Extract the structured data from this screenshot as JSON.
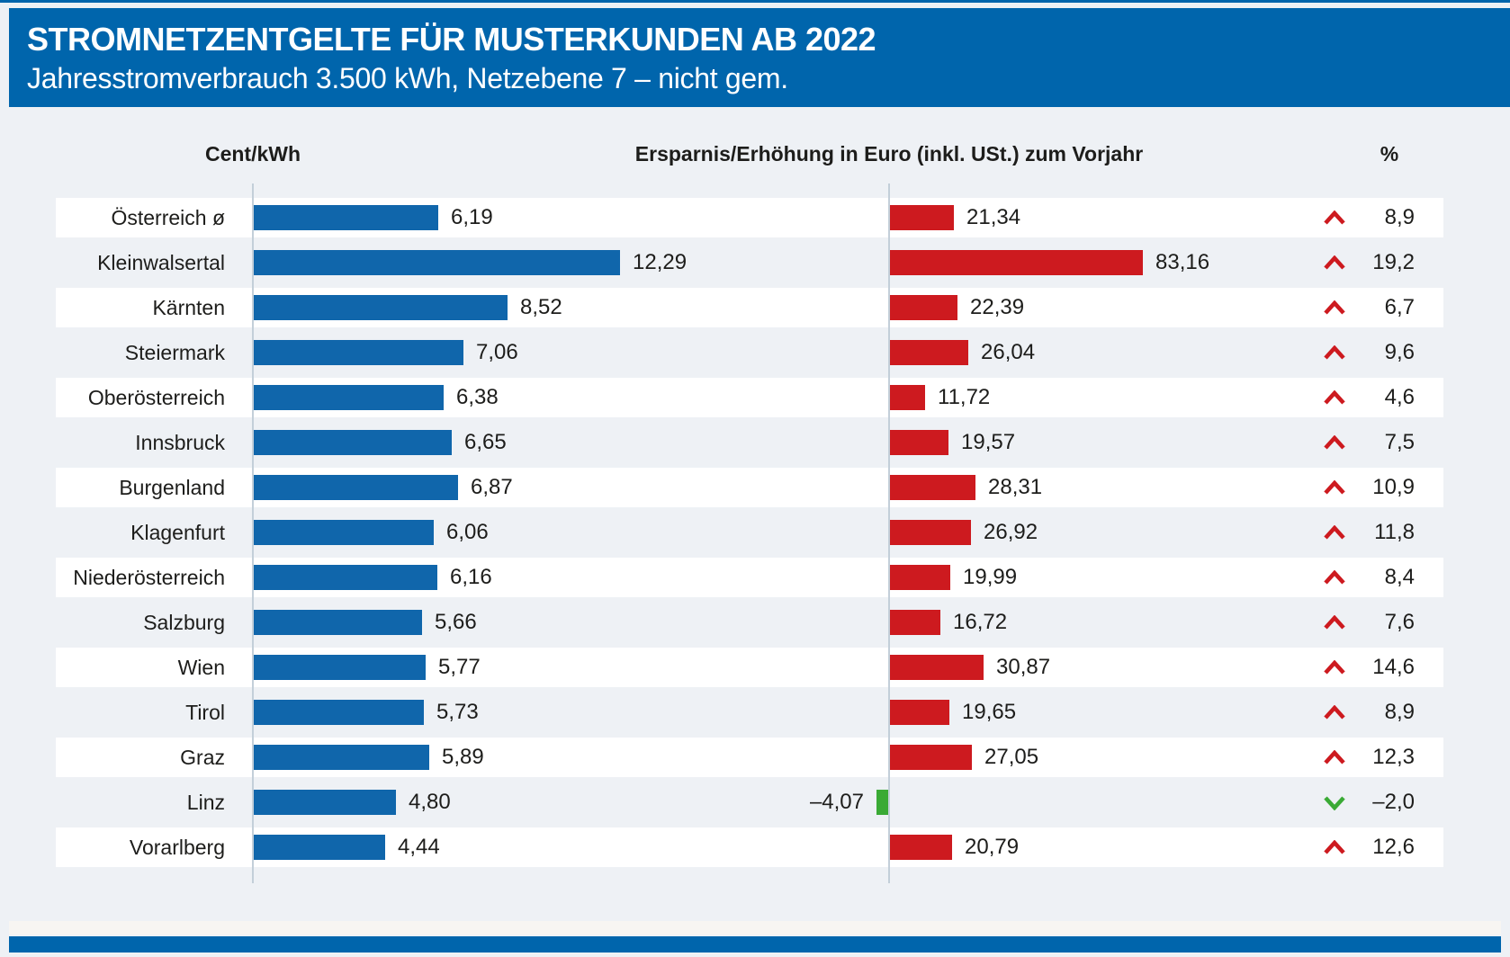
{
  "header": {
    "title": "STROMNETZENTGELTE FÜR MUSTERKUNDEN AB 2022",
    "subtitle": "Jahresstromverbrauch 3.500 kWh, Netzebene 7 – nicht gem."
  },
  "colors": {
    "header_blue": "#0065ac",
    "bar_blue": "#1066ab",
    "bar_red": "#cd1a1f",
    "bar_green": "#3aaa35",
    "page_bg": "#eef1f5",
    "row_white": "#ffffff",
    "row_alt": "#eef1f5",
    "axis_line": "#c3cfd9",
    "text": "#1d1d1b"
  },
  "chart_data": {
    "type": "bar",
    "orientation": "horizontal",
    "title": "STROMNETZENTGELTE FÜR MUSTERKUNDEN AB 2022",
    "subtitle": "Jahresstromverbrauch 3.500 kWh, Netzebene 7 – nicht gem.",
    "legend_position": "none",
    "grid": false,
    "categories": [
      "Österreich ø",
      "Kleinwalsertal",
      "Kärnten",
      "Steiermark",
      "Oberösterreich",
      "Innsbruck",
      "Burgenland",
      "Klagenfurt",
      "Niederösterreich",
      "Salzburg",
      "Wien",
      "Tirol",
      "Graz",
      "Linz",
      "Vorarlberg"
    ],
    "series": [
      {
        "name": "Cent/kWh",
        "unit": "Cent/kWh",
        "values": [
          6.19,
          12.29,
          8.52,
          7.06,
          6.38,
          6.65,
          6.87,
          6.06,
          6.16,
          5.66,
          5.77,
          5.73,
          5.89,
          4.8,
          4.44
        ],
        "labels": [
          "6,19",
          "12,29",
          "8,52",
          "7,06",
          "6,38",
          "6,65",
          "6,87",
          "6,06",
          "6,16",
          "5,66",
          "5,77",
          "5,73",
          "5,89",
          "4,80",
          "4,44"
        ],
        "axis_range": [
          0,
          12.29
        ]
      },
      {
        "name": "Ersparnis/Erhöhung in Euro (inkl. USt.) zum Vorjahr",
        "unit": "Euro",
        "values": [
          21.34,
          83.16,
          22.39,
          26.04,
          11.72,
          19.57,
          28.31,
          26.92,
          19.99,
          16.72,
          30.87,
          19.65,
          27.05,
          -4.07,
          20.79
        ],
        "labels": [
          "21,34",
          "83,16",
          "22,39",
          "26,04",
          "11,72",
          "19,57",
          "28,31",
          "26,92",
          "19,99",
          "16,72",
          "30,87",
          "19,65",
          "27,05",
          "–4,07",
          "20,79"
        ],
        "axis_range": [
          -4.07,
          83.16
        ]
      },
      {
        "name": "%",
        "unit": "%",
        "values": [
          8.9,
          19.2,
          6.7,
          9.6,
          4.6,
          7.5,
          10.9,
          11.8,
          8.4,
          7.6,
          14.6,
          8.9,
          12.3,
          -2.0,
          12.6
        ],
        "labels": [
          "8,9",
          "19,2",
          "6,7",
          "9,6",
          "4,6",
          "7,5",
          "10,9",
          "11,8",
          "8,4",
          "7,6",
          "14,6",
          "8,9",
          "12,3",
          "–2,0",
          "12,6"
        ],
        "directions": [
          "up",
          "up",
          "up",
          "up",
          "up",
          "up",
          "up",
          "up",
          "up",
          "up",
          "up",
          "up",
          "up",
          "down",
          "up"
        ]
      }
    ]
  }
}
